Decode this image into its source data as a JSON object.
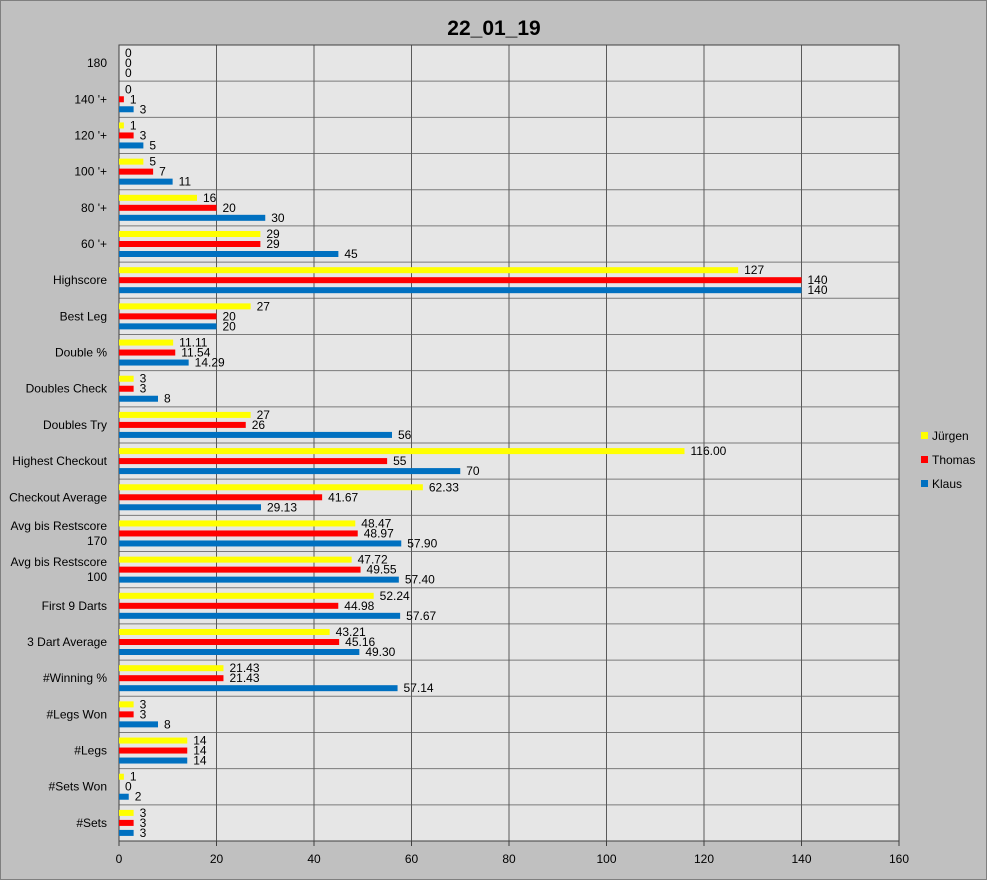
{
  "chart_data": {
    "type": "bar",
    "orientation": "horizontal",
    "title": "22_01_19",
    "xlim": [
      0,
      160
    ],
    "xticks": [
      "0",
      "20",
      "40",
      "60",
      "80",
      "100",
      "120",
      "140",
      "160"
    ],
    "grid": "vertical",
    "legend_position": "right",
    "categories": [
      {
        "lines": [
          "180"
        ]
      },
      {
        "lines": [
          "140 '+"
        ]
      },
      {
        "lines": [
          "120 '+"
        ]
      },
      {
        "lines": [
          "100 '+"
        ]
      },
      {
        "lines": [
          "80 '+"
        ]
      },
      {
        "lines": [
          "60 '+"
        ]
      },
      {
        "lines": [
          "Highscore"
        ]
      },
      {
        "lines": [
          "Best Leg"
        ]
      },
      {
        "lines": [
          "Double %"
        ]
      },
      {
        "lines": [
          "Doubles Check"
        ]
      },
      {
        "lines": [
          "Doubles Try"
        ]
      },
      {
        "lines": [
          "Highest Checkout"
        ]
      },
      {
        "lines": [
          "Checkout Average"
        ]
      },
      {
        "lines": [
          "Avg bis Restscore",
          "170"
        ]
      },
      {
        "lines": [
          "Avg bis Restscore",
          "100"
        ]
      },
      {
        "lines": [
          "First 9 Darts"
        ]
      },
      {
        "lines": [
          "3 Dart Average"
        ]
      },
      {
        "lines": [
          "#Winning %"
        ]
      },
      {
        "lines": [
          "#Legs Won"
        ]
      },
      {
        "lines": [
          "#Legs"
        ]
      },
      {
        "lines": [
          "#Sets Won"
        ]
      },
      {
        "lines": [
          "#Sets"
        ]
      }
    ],
    "series": [
      {
        "name": "Jürgen",
        "color": "#ffff00",
        "values": [
          0,
          0,
          1,
          5,
          16,
          29,
          127,
          27,
          11.11,
          3,
          27,
          116,
          62.33,
          48.47,
          47.72,
          52.24,
          43.21,
          21.43,
          3,
          14,
          1,
          3
        ],
        "labels": [
          "0",
          "0",
          "1",
          "5",
          "16",
          "29",
          "127",
          "27",
          "11.11",
          "3",
          "27",
          "116.00",
          "62.33",
          "48.47",
          "47.72",
          "52.24",
          "43.21",
          "21.43",
          "3",
          "14",
          "1",
          "3"
        ]
      },
      {
        "name": "Thomas",
        "color": "#ff0000",
        "values": [
          0,
          1,
          3,
          7,
          20,
          29,
          140,
          20,
          11.54,
          3,
          26,
          55,
          41.67,
          48.97,
          49.55,
          44.98,
          45.16,
          21.43,
          3,
          14,
          0,
          3
        ],
        "labels": [
          "0",
          "1",
          "3",
          "7",
          "20",
          "29",
          "140",
          "20",
          "11.54",
          "3",
          "26",
          "55",
          "41.67",
          "48.97",
          "49.55",
          "44.98",
          "45.16",
          "21.43",
          "3",
          "14",
          "0",
          "3"
        ]
      },
      {
        "name": "Klaus",
        "color": "#0070c0",
        "values": [
          0,
          3,
          5,
          11,
          30,
          45,
          140,
          20,
          14.29,
          8,
          56,
          70,
          29.13,
          57.9,
          57.4,
          57.67,
          49.3,
          57.14,
          8,
          14,
          2,
          3
        ],
        "labels": [
          "0",
          "3",
          "5",
          "11",
          "30",
          "45",
          "140",
          "20",
          "14.29",
          "8",
          "56",
          "70",
          "29.13",
          "57.90",
          "57.40",
          "57.67",
          "49.30",
          "57.14",
          "8",
          "14",
          "2",
          "3"
        ]
      }
    ]
  }
}
